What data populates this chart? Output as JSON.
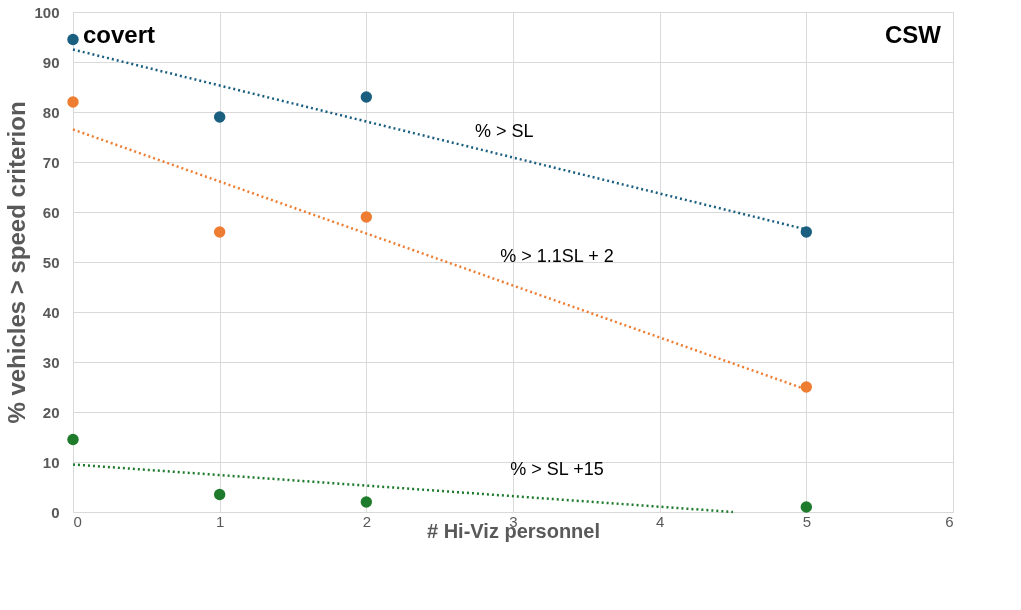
{
  "chart_data": {
    "type": "scatter",
    "xlabel": "# Hi-Viz personnel",
    "ylabel": "% vehicles > speed criterion",
    "xlim": [
      0,
      6
    ],
    "xticks": [
      0,
      1,
      2,
      3,
      4,
      5,
      6
    ],
    "ylim": [
      0,
      100
    ],
    "yticks": [
      0,
      10,
      20,
      30,
      40,
      50,
      60,
      70,
      80,
      90,
      100
    ],
    "grid": true,
    "marker": "circle",
    "series": [
      {
        "color": "#1b5f80",
        "x": [
          0,
          1,
          2,
          5
        ],
        "values": [
          94.5,
          79,
          83,
          56
        ]
      },
      {
        "color": "#ee7d31",
        "x": [
          0,
          1,
          2,
          5
        ],
        "values": [
          82,
          56,
          59,
          25
        ]
      },
      {
        "color": "#1e7b2c",
        "x": [
          0,
          1,
          2,
          5
        ],
        "values": [
          14.5,
          3.5,
          2,
          1
        ]
      },
      {
        "type": "line",
        "color": "#1b5f80",
        "line_style": "dotted",
        "marker": "none",
        "x": [
          0,
          5
        ],
        "values": [
          92.5,
          56.5
        ]
      },
      {
        "type": "line",
        "color": "#ee7d31",
        "line_style": "dotted",
        "marker": "none",
        "x": [
          0,
          5
        ],
        "values": [
          76.5,
          24.5
        ]
      },
      {
        "type": "line",
        "color": "#1e7b2c",
        "line_style": "dotted",
        "marker": "none",
        "x": [
          0,
          4.5
        ],
        "values": [
          9.5,
          0
        ]
      }
    ],
    "annotations": [
      "covert",
      "CSW",
      "% > SL",
      "% > 1.1SL + 2",
      "% > SL +15"
    ]
  }
}
